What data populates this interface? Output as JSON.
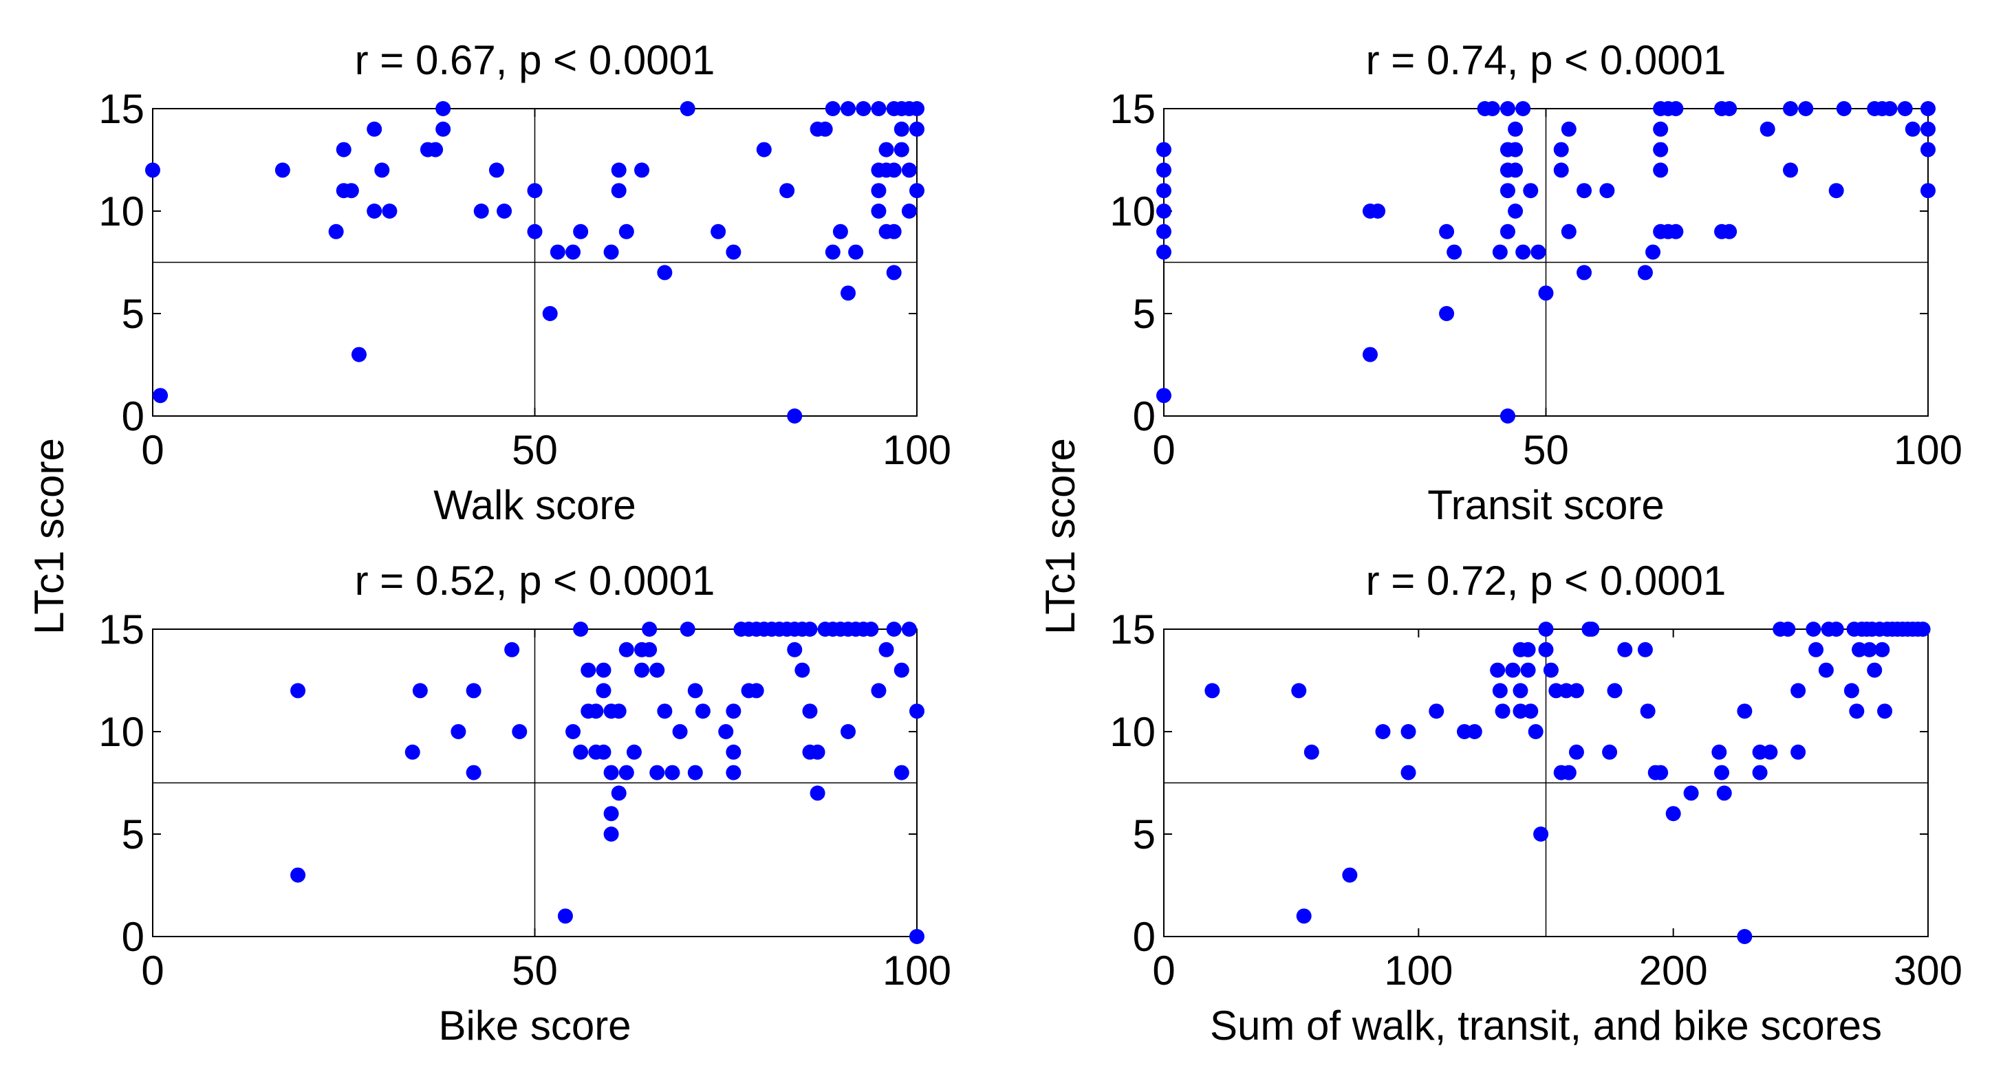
{
  "figure": {
    "ylabel_left": "LTc1 score"
  },
  "colors": {
    "points": "#0000ff",
    "axes": "#000000",
    "background": "#ffffff"
  },
  "chart_data": [
    {
      "type": "scatter",
      "title": "r = 0.67, p < 0.0001",
      "xlabel": "Walk score",
      "ylabel": "LTc1 score",
      "xlim": [
        0,
        100
      ],
      "ylim": [
        0,
        15
      ],
      "xticks": [
        "0",
        "50",
        "100"
      ],
      "yticks": [
        "0",
        "5",
        "10",
        "15"
      ],
      "reference_lines": {
        "x": 50,
        "y": 7.5
      },
      "points": [
        [
          0,
          12
        ],
        [
          1,
          1
        ],
        [
          17,
          12
        ],
        [
          24,
          9
        ],
        [
          25,
          11
        ],
        [
          25,
          13
        ],
        [
          26,
          11
        ],
        [
          27,
          3
        ],
        [
          29,
          14
        ],
        [
          29,
          10
        ],
        [
          30,
          12
        ],
        [
          31,
          10
        ],
        [
          36,
          13
        ],
        [
          37,
          13
        ],
        [
          38,
          14
        ],
        [
          38,
          15
        ],
        [
          43,
          10
        ],
        [
          45,
          12
        ],
        [
          46,
          10
        ],
        [
          50,
          11
        ],
        [
          50,
          9
        ],
        [
          52,
          5
        ],
        [
          53,
          8
        ],
        [
          55,
          8
        ],
        [
          56,
          9
        ],
        [
          60,
          8
        ],
        [
          61,
          12
        ],
        [
          61,
          11
        ],
        [
          62,
          9
        ],
        [
          64,
          12
        ],
        [
          67,
          7
        ],
        [
          70,
          15
        ],
        [
          74,
          9
        ],
        [
          76,
          8
        ],
        [
          80,
          13
        ],
        [
          83,
          11
        ],
        [
          84,
          0
        ],
        [
          87,
          14
        ],
        [
          88,
          14
        ],
        [
          89,
          15
        ],
        [
          89,
          8
        ],
        [
          90,
          9
        ],
        [
          91,
          6
        ],
        [
          91,
          15
        ],
        [
          92,
          8
        ],
        [
          93,
          15
        ],
        [
          95,
          15
        ],
        [
          95,
          10
        ],
        [
          95,
          12
        ],
        [
          95,
          11
        ],
        [
          96,
          9
        ],
        [
          96,
          12
        ],
        [
          96,
          13
        ],
        [
          97,
          7
        ],
        [
          97,
          9
        ],
        [
          97,
          15
        ],
        [
          97,
          12
        ],
        [
          98,
          15
        ],
        [
          98,
          14
        ],
        [
          98,
          13
        ],
        [
          99,
          15
        ],
        [
          99,
          12
        ],
        [
          99,
          10
        ],
        [
          100,
          15
        ],
        [
          100,
          14
        ],
        [
          100,
          11
        ]
      ]
    },
    {
      "type": "scatter",
      "title": "r = 0.74, p < 0.0001",
      "xlabel": "Transit score",
      "ylabel": "LTc1 score",
      "xlim": [
        0,
        100
      ],
      "ylim": [
        0,
        15
      ],
      "xticks": [
        "0",
        "50",
        "100"
      ],
      "yticks": [
        "0",
        "5",
        "10",
        "15"
      ],
      "reference_lines": {
        "x": 50,
        "y": 7.5
      },
      "points": [
        [
          0,
          13
        ],
        [
          0,
          12
        ],
        [
          0,
          11
        ],
        [
          0,
          10
        ],
        [
          0,
          9
        ],
        [
          0,
          8
        ],
        [
          0,
          1
        ],
        [
          27,
          10
        ],
        [
          27,
          3
        ],
        [
          28,
          10
        ],
        [
          37,
          9
        ],
        [
          37,
          5
        ],
        [
          38,
          8
        ],
        [
          42,
          15
        ],
        [
          43,
          15
        ],
        [
          44,
          8
        ],
        [
          45,
          15
        ],
        [
          45,
          13
        ],
        [
          45,
          12
        ],
        [
          45,
          11
        ],
        [
          45,
          9
        ],
        [
          45,
          0
        ],
        [
          46,
          14
        ],
        [
          46,
          13
        ],
        [
          46,
          12
        ],
        [
          46,
          10
        ],
        [
          47,
          15
        ],
        [
          47,
          8
        ],
        [
          48,
          11
        ],
        [
          49,
          8
        ],
        [
          50,
          6
        ],
        [
          52,
          13
        ],
        [
          52,
          12
        ],
        [
          53,
          9
        ],
        [
          53,
          14
        ],
        [
          55,
          11
        ],
        [
          55,
          7
        ],
        [
          58,
          11
        ],
        [
          63,
          7
        ],
        [
          64,
          8
        ],
        [
          65,
          9
        ],
        [
          65,
          14
        ],
        [
          65,
          13
        ],
        [
          65,
          12
        ],
        [
          65,
          15
        ],
        [
          66,
          9
        ],
        [
          66,
          15
        ],
        [
          67,
          9
        ],
        [
          67,
          15
        ],
        [
          73,
          9
        ],
        [
          73,
          15
        ],
        [
          74,
          9
        ],
        [
          74,
          15
        ],
        [
          79,
          14
        ],
        [
          82,
          15
        ],
        [
          82,
          12
        ],
        [
          84,
          15
        ],
        [
          88,
          11
        ],
        [
          89,
          15
        ],
        [
          93,
          15
        ],
        [
          94,
          15
        ],
        [
          95,
          15
        ],
        [
          97,
          15
        ],
        [
          98,
          14
        ],
        [
          100,
          15
        ],
        [
          100,
          14
        ],
        [
          100,
          13
        ],
        [
          100,
          11
        ]
      ]
    },
    {
      "type": "scatter",
      "title": "r = 0.52, p < 0.0001",
      "xlabel": "Bike score",
      "ylabel": "LTc1 score",
      "xlim": [
        0,
        100
      ],
      "ylim": [
        0,
        15
      ],
      "xticks": [
        "0",
        "50",
        "100"
      ],
      "yticks": [
        "0",
        "5",
        "10",
        "15"
      ],
      "reference_lines": {
        "x": 50,
        "y": 7.5
      },
      "points": [
        [
          19,
          12
        ],
        [
          19,
          3
        ],
        [
          34,
          9
        ],
        [
          35,
          12
        ],
        [
          40,
          10
        ],
        [
          42,
          12
        ],
        [
          42,
          8
        ],
        [
          47,
          14
        ],
        [
          48,
          10
        ],
        [
          54,
          1
        ],
        [
          55,
          10
        ],
        [
          56,
          15
        ],
        [
          56,
          9
        ],
        [
          57,
          11
        ],
        [
          57,
          13
        ],
        [
          58,
          9
        ],
        [
          58,
          11
        ],
        [
          59,
          13
        ],
        [
          59,
          12
        ],
        [
          59,
          9
        ],
        [
          60,
          11
        ],
        [
          60,
          8
        ],
        [
          60,
          5
        ],
        [
          60,
          6
        ],
        [
          61,
          7
        ],
        [
          61,
          11
        ],
        [
          62,
          8
        ],
        [
          62,
          14
        ],
        [
          63,
          9
        ],
        [
          64,
          14
        ],
        [
          64,
          13
        ],
        [
          65,
          15
        ],
        [
          65,
          14
        ],
        [
          66,
          8
        ],
        [
          66,
          13
        ],
        [
          67,
          11
        ],
        [
          68,
          8
        ],
        [
          69,
          10
        ],
        [
          70,
          15
        ],
        [
          71,
          12
        ],
        [
          71,
          8
        ],
        [
          72,
          11
        ],
        [
          75,
          10
        ],
        [
          76,
          11
        ],
        [
          76,
          8
        ],
        [
          76,
          9
        ],
        [
          77,
          15
        ],
        [
          78,
          15
        ],
        [
          78,
          12
        ],
        [
          79,
          15
        ],
        [
          79,
          12
        ],
        [
          80,
          15
        ],
        [
          81,
          15
        ],
        [
          82,
          15
        ],
        [
          83,
          15
        ],
        [
          84,
          15
        ],
        [
          84,
          14
        ],
        [
          85,
          15
        ],
        [
          85,
          13
        ],
        [
          86,
          15
        ],
        [
          86,
          9
        ],
        [
          86,
          11
        ],
        [
          87,
          7
        ],
        [
          87,
          9
        ],
        [
          88,
          15
        ],
        [
          89,
          15
        ],
        [
          90,
          15
        ],
        [
          91,
          10
        ],
        [
          91,
          15
        ],
        [
          92,
          15
        ],
        [
          93,
          15
        ],
        [
          94,
          15
        ],
        [
          95,
          12
        ],
        [
          96,
          14
        ],
        [
          97,
          15
        ],
        [
          98,
          8
        ],
        [
          98,
          13
        ],
        [
          99,
          15
        ],
        [
          100,
          11
        ],
        [
          100,
          0
        ]
      ]
    },
    {
      "type": "scatter",
      "title": "r = 0.72, p < 0.0001",
      "xlabel": "Sum of walk, transit, and bike scores",
      "ylabel": "LTc1 score",
      "xlim": [
        0,
        300
      ],
      "ylim": [
        0,
        15
      ],
      "xticks": [
        "0",
        "100",
        "200",
        "300"
      ],
      "yticks": [
        "0",
        "5",
        "10",
        "15"
      ],
      "reference_lines": {
        "x": 150,
        "y": 7.5
      },
      "points": [
        [
          19,
          12
        ],
        [
          53,
          12
        ],
        [
          55,
          1
        ],
        [
          58,
          9
        ],
        [
          73,
          3
        ],
        [
          86,
          10
        ],
        [
          96,
          10
        ],
        [
          96,
          8
        ],
        [
          107,
          11
        ],
        [
          118,
          10
        ],
        [
          122,
          10
        ],
        [
          131,
          13
        ],
        [
          132,
          12
        ],
        [
          133,
          11
        ],
        [
          137,
          13
        ],
        [
          140,
          14
        ],
        [
          140,
          12
        ],
        [
          140,
          11
        ],
        [
          143,
          14
        ],
        [
          143,
          13
        ],
        [
          144,
          11
        ],
        [
          146,
          10
        ],
        [
          148,
          5
        ],
        [
          150,
          15
        ],
        [
          150,
          14
        ],
        [
          152,
          13
        ],
        [
          154,
          12
        ],
        [
          156,
          8
        ],
        [
          158,
          12
        ],
        [
          159,
          8
        ],
        [
          162,
          9
        ],
        [
          162,
          12
        ],
        [
          167,
          15
        ],
        [
          168,
          15
        ],
        [
          175,
          9
        ],
        [
          177,
          12
        ],
        [
          181,
          14
        ],
        [
          189,
          14
        ],
        [
          190,
          11
        ],
        [
          193,
          8
        ],
        [
          195,
          8
        ],
        [
          200,
          6
        ],
        [
          207,
          7
        ],
        [
          218,
          9
        ],
        [
          219,
          8
        ],
        [
          220,
          7
        ],
        [
          228,
          11
        ],
        [
          228,
          0
        ],
        [
          234,
          8
        ],
        [
          234,
          9
        ],
        [
          238,
          9
        ],
        [
          242,
          15
        ],
        [
          245,
          15
        ],
        [
          249,
          12
        ],
        [
          249,
          9
        ],
        [
          255,
          15
        ],
        [
          256,
          14
        ],
        [
          260,
          13
        ],
        [
          261,
          15
        ],
        [
          264,
          15
        ],
        [
          270,
          12
        ],
        [
          272,
          11
        ],
        [
          271,
          15
        ],
        [
          273,
          14
        ],
        [
          274,
          15
        ],
        [
          276,
          15
        ],
        [
          277,
          14
        ],
        [
          278,
          15
        ],
        [
          279,
          13
        ],
        [
          281,
          15
        ],
        [
          282,
          14
        ],
        [
          283,
          11
        ],
        [
          284,
          15
        ],
        [
          286,
          15
        ],
        [
          288,
          15
        ],
        [
          290,
          15
        ],
        [
          292,
          15
        ],
        [
          294,
          15
        ],
        [
          296,
          15
        ],
        [
          298,
          15
        ]
      ]
    }
  ]
}
